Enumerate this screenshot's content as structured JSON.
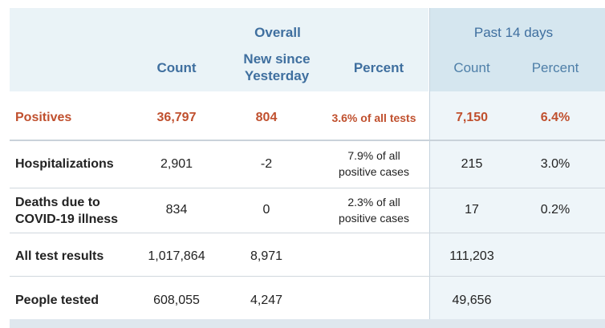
{
  "header": {
    "overall": "Overall",
    "past14": "Past 14 days",
    "count": "Count",
    "new_since_line1": "New since",
    "new_since_line2": "Yesterday",
    "percent": "Percent",
    "past_count": "Count",
    "past_percent": "Percent"
  },
  "rows": [
    {
      "label": "Positives",
      "count": "36,797",
      "new": "804",
      "percent": "3.6% of all tests",
      "past_count": "7,150",
      "past_percent": "6.4%"
    },
    {
      "label": "Hospitalizations",
      "count": "2,901",
      "new": "-2",
      "percent_line1": "7.9% of all",
      "percent_line2": "positive cases",
      "past_count": "215",
      "past_percent": "3.0%"
    },
    {
      "label_line1": "Deaths due to",
      "label_line2": "COVID-19 illness",
      "count": "834",
      "new": "0",
      "percent_line1": "2.3% of all",
      "percent_line2": "positive cases",
      "past_count": "17",
      "past_percent": "0.2%"
    },
    {
      "label": "All test results",
      "count": "1,017,864",
      "new": "8,971",
      "past_count": "111,203"
    },
    {
      "label": "People tested",
      "count": "608,055",
      "new": "4,247",
      "past_count": "49,656"
    }
  ],
  "colors": {
    "accent": "#3f6f9f",
    "positive": "#c0502e",
    "header_bg": "#eaf3f7",
    "past_bg": "#d5e6ef"
  }
}
